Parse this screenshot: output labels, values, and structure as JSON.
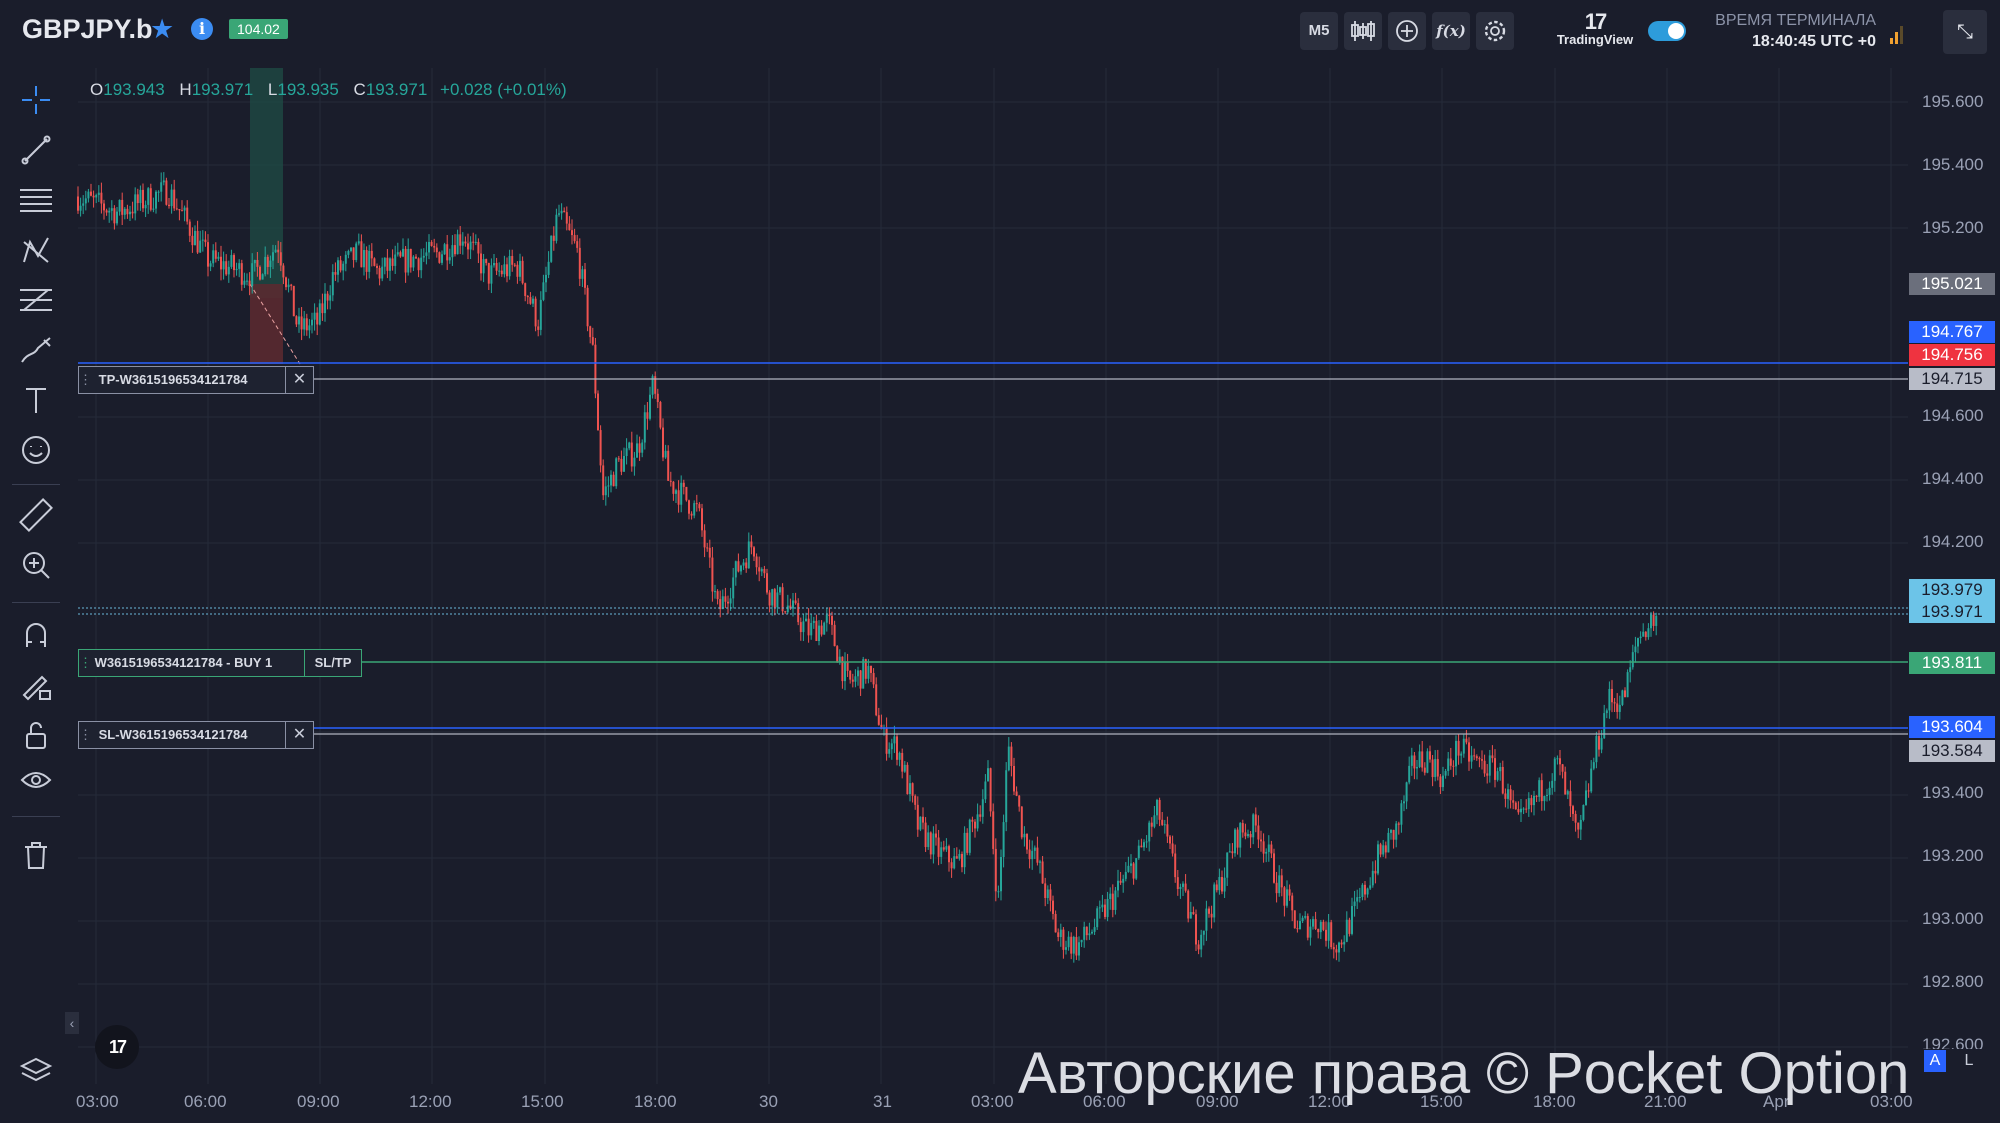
{
  "header": {
    "symbol": "GBPJPY.b",
    "badge": "104.02",
    "timeframe": "M5",
    "brand": "TradingView",
    "terminal_label": "ВРЕМЯ ТЕРМИНАЛА",
    "terminal_time": "18:40:45 UTC +0"
  },
  "ohlc": {
    "o_label": "O",
    "o": "193.943",
    "h_label": "H",
    "h": "193.971",
    "l_label": "L",
    "l": "193.935",
    "c_label": "C",
    "c": "193.971",
    "change": "+0.028 (+0.01%)"
  },
  "price_ticks": [
    "195.600",
    "195.400",
    "195.200",
    "194.600",
    "194.400",
    "194.200",
    "193.400",
    "193.200",
    "193.000",
    "192.800",
    "192.600"
  ],
  "price_labels": {
    "p195021": "195.021",
    "p194767": "194.767",
    "p194756": "194.756",
    "p194715": "194.715",
    "p193979": "193.979",
    "p193971": "193.971",
    "p193811": "193.811",
    "p193604": "193.604",
    "p193584": "193.584"
  },
  "time_labels": [
    "03:00",
    "06:00",
    "09:00",
    "12:00",
    "15:00",
    "18:00",
    "30",
    "31",
    "03:00",
    "06:00",
    "09:00",
    "12:00",
    "15:00",
    "18:00",
    "21:00",
    "Apr",
    "03:00"
  ],
  "orders": {
    "tp_label": "TP-W3615196534121784",
    "buy_label": "W3615196534121784 - BUY 1",
    "sltp_label": "SL/TP",
    "sl_label": "SL-W3615196534121784"
  },
  "watermark": "Авторские права © Pocket Option",
  "corner": {
    "a": "A",
    "l": "L"
  },
  "colors": {
    "background": "#1a1d2b",
    "up": "#26a69a",
    "down": "#ef5350",
    "blue_line": "#2962ff",
    "green_line": "#3aa676"
  },
  "chart_data": {
    "type": "candlestick",
    "title": "",
    "y_ticks": [
      192.6,
      192.8,
      193.0,
      193.2,
      193.4,
      193.6,
      194.2,
      194.4,
      194.6,
      195.2,
      195.4,
      195.6
    ],
    "ylim": [
      192.57,
      195.72
    ],
    "close_path": [
      [
        0,
        195.3
      ],
      [
        40,
        195.25
      ],
      [
        90,
        195.32
      ],
      [
        130,
        195.1
      ],
      [
        175,
        195.05
      ],
      [
        200,
        195.15
      ],
      [
        220,
        194.88
      ],
      [
        240,
        194.9
      ],
      [
        255,
        195.05
      ],
      [
        280,
        195.12
      ],
      [
        300,
        195.06
      ],
      [
        330,
        195.1
      ],
      [
        360,
        195.12
      ],
      [
        385,
        195.18
      ],
      [
        410,
        195.05
      ],
      [
        440,
        195.08
      ],
      [
        460,
        194.9
      ],
      [
        480,
        195.25
      ],
      [
        500,
        195.12
      ],
      [
        515,
        194.8
      ],
      [
        525,
        194.35
      ],
      [
        540,
        194.45
      ],
      [
        560,
        194.5
      ],
      [
        575,
        194.7
      ],
      [
        590,
        194.4
      ],
      [
        605,
        194.35
      ],
      [
        620,
        194.3
      ],
      [
        640,
        193.98
      ],
      [
        660,
        194.12
      ],
      [
        675,
        194.2
      ],
      [
        690,
        194.05
      ],
      [
        710,
        194.0
      ],
      [
        730,
        193.92
      ],
      [
        750,
        193.95
      ],
      [
        770,
        193.75
      ],
      [
        790,
        193.8
      ],
      [
        805,
        193.58
      ],
      [
        820,
        193.55
      ],
      [
        840,
        193.3
      ],
      [
        860,
        193.22
      ],
      [
        880,
        193.18
      ],
      [
        900,
        193.35
      ],
      [
        910,
        193.45
      ],
      [
        920,
        193.05
      ],
      [
        930,
        193.55
      ],
      [
        945,
        193.28
      ],
      [
        960,
        193.18
      ],
      [
        980,
        192.95
      ],
      [
        1000,
        192.92
      ],
      [
        1020,
        193.0
      ],
      [
        1040,
        193.1
      ],
      [
        1060,
        193.2
      ],
      [
        1080,
        193.35
      ],
      [
        1100,
        193.12
      ],
      [
        1120,
        192.95
      ],
      [
        1140,
        193.1
      ],
      [
        1160,
        193.28
      ],
      [
        1180,
        193.3
      ],
      [
        1200,
        193.12
      ],
      [
        1220,
        192.98
      ],
      [
        1240,
        193.0
      ],
      [
        1260,
        192.92
      ],
      [
        1280,
        193.05
      ],
      [
        1300,
        193.2
      ],
      [
        1320,
        193.3
      ],
      [
        1335,
        193.5
      ],
      [
        1350,
        193.52
      ],
      [
        1365,
        193.45
      ],
      [
        1380,
        193.55
      ],
      [
        1400,
        193.5
      ],
      [
        1420,
        193.48
      ],
      [
        1440,
        193.3
      ],
      [
        1460,
        193.4
      ],
      [
        1480,
        193.5
      ],
      [
        1500,
        193.25
      ],
      [
        1515,
        193.5
      ],
      [
        1530,
        193.7
      ],
      [
        1545,
        193.7
      ],
      [
        1560,
        193.9
      ],
      [
        1570,
        193.94
      ],
      [
        1580,
        193.97
      ]
    ]
  }
}
